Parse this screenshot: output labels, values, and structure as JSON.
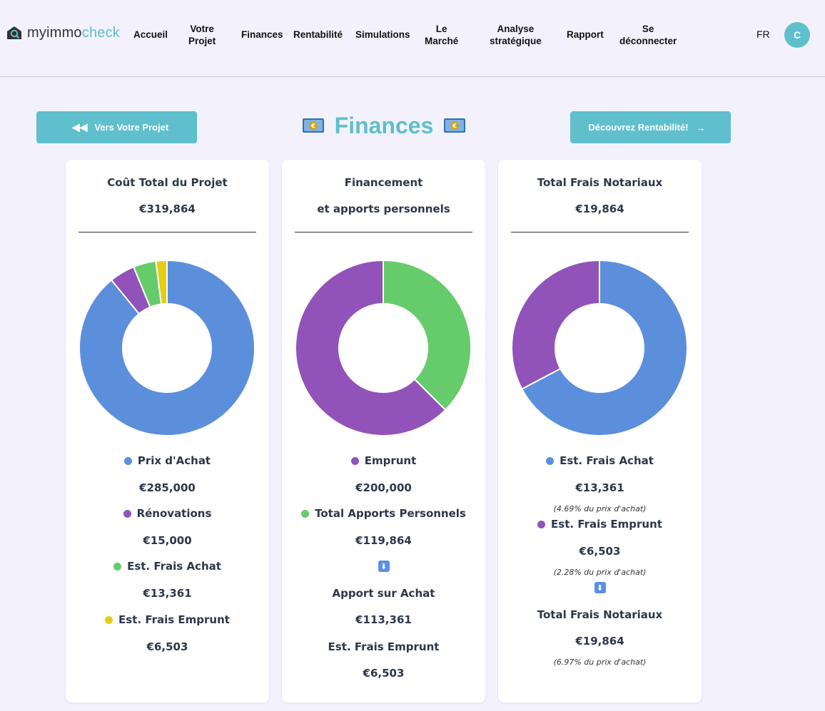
{
  "brand": {
    "part1": "myimmo",
    "part2": "check"
  },
  "nav": {
    "accueil": "Accueil",
    "projet_l1": "Votre",
    "projet_l2": "Projet",
    "finances": "Finances",
    "rentabilite": "Rentabilité",
    "simulations": "Simulations",
    "marche_l1": "Le",
    "marche_l2": "Marché",
    "analyse_l1": "Analyse",
    "analyse_l2": "stratégique",
    "rapport": "Rapport",
    "logout_l1": "Se",
    "logout_l2": "déconnecter",
    "lang": "FR",
    "avatar": "C"
  },
  "header": {
    "back_label": "Vers Votre Projet",
    "title": "Finances",
    "next_label": "Découvrez Rentabilité!"
  },
  "colors": {
    "accent": "#5fbfcc",
    "blue": "#5b8fdc",
    "purple": "#9153ba",
    "green": "#66cc6b",
    "yellow": "#e6cc12"
  },
  "cards": {
    "cost": {
      "title": "Coût Total du Projet",
      "total": "€319,864",
      "items": [
        {
          "label": "Prix d'Achat",
          "value": "€285,000"
        },
        {
          "label": "Rénovations",
          "value": "€15,000"
        },
        {
          "label": "Est. Frais Achat",
          "value": "€13,361"
        },
        {
          "label": "Est. Frais Emprunt",
          "value": "€6,503"
        }
      ]
    },
    "financing": {
      "title_l1": "Financement",
      "title_l2": "et apports personnels",
      "items": [
        {
          "label": "Emprunt",
          "value": "€200,000"
        },
        {
          "label": "Total Apports Personnels",
          "value": "€119,864"
        }
      ],
      "apport_label": "Apport sur Achat",
      "apport_value": "€113,361",
      "frais_label": "Est. Frais Emprunt",
      "frais_value": "€6,503"
    },
    "notary": {
      "title": "Total Frais Notariaux",
      "total": "€19,864",
      "items": [
        {
          "label": "Est. Frais Achat",
          "value": "€13,361",
          "note": "(4.69% du prix d'achat)"
        },
        {
          "label": "Est. Frais Emprunt",
          "value": "€6,503",
          "note": "(2.28% du prix d'achat)"
        }
      ],
      "total_label": "Total Frais Notariaux",
      "total_value": "€19,864",
      "total_note": "(6.97% du prix d'achat)"
    }
  },
  "chart_data": [
    {
      "type": "pie",
      "title": "Coût Total du Projet",
      "categories": [
        "Prix d'Achat",
        "Rénovations",
        "Est. Frais Achat",
        "Est. Frais Emprunt"
      ],
      "values": [
        285000,
        15000,
        13361,
        6503
      ],
      "colors": [
        "#5b8fdc",
        "#9153ba",
        "#66cc6b",
        "#e6cc12"
      ]
    },
    {
      "type": "pie",
      "title": "Financement et apports personnels",
      "categories": [
        "Total Apports Personnels",
        "Emprunt"
      ],
      "values": [
        119864,
        200000
      ],
      "colors": [
        "#66cc6b",
        "#9153ba"
      ]
    },
    {
      "type": "pie",
      "title": "Total Frais Notariaux",
      "categories": [
        "Est. Frais Achat",
        "Est. Frais Emprunt"
      ],
      "values": [
        13361,
        6503
      ],
      "colors": [
        "#5b8fdc",
        "#9153ba"
      ]
    }
  ]
}
